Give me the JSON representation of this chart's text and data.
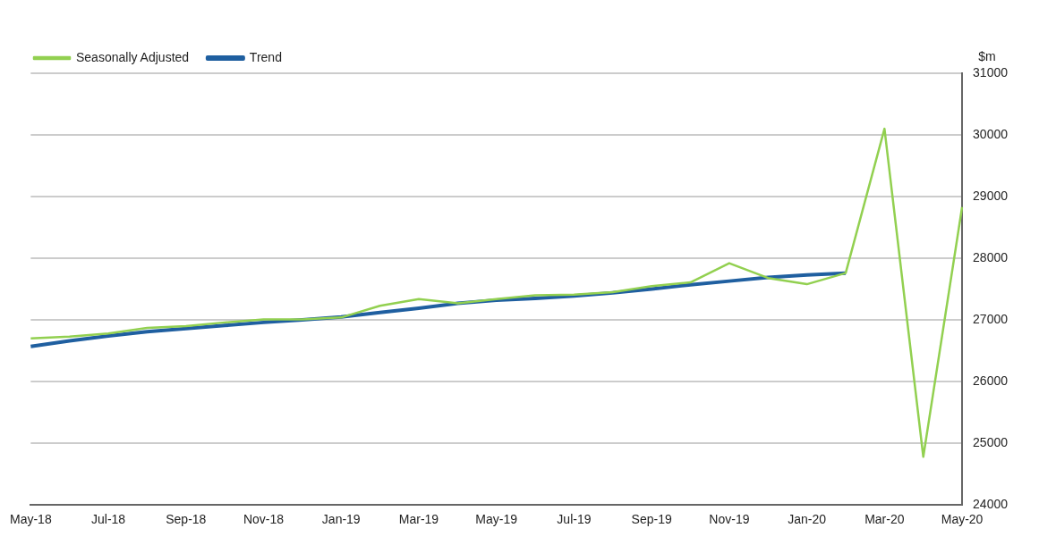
{
  "chart_data": {
    "type": "line",
    "ylabel": "$m",
    "categories": [
      "May-18",
      null,
      "Jul-18",
      null,
      "Sep-18",
      null,
      "Nov-18",
      null,
      "Jan-19",
      null,
      "Mar-19",
      null,
      "May-19",
      null,
      "Jul-19",
      null,
      "Sep-19",
      null,
      "Nov-19",
      null,
      "Jan-20",
      null,
      "Mar-20",
      null,
      "May-20"
    ],
    "series": [
      {
        "name": "Seasonally Adjusted",
        "color": "#92d050",
        "values": [
          26700,
          26730,
          26780,
          26870,
          26900,
          26960,
          27010,
          27010,
          27040,
          27230,
          27340,
          27270,
          27340,
          27400,
          27410,
          27450,
          27550,
          27610,
          27920,
          27680,
          27580,
          27760,
          30100,
          24780,
          28830
        ]
      },
      {
        "name": "Trend",
        "color": "#1f5fa0",
        "values": [
          26570,
          26660,
          26740,
          26810,
          26860,
          26910,
          26960,
          27000,
          27050,
          27120,
          27190,
          27270,
          27320,
          27350,
          27390,
          27440,
          27500,
          27570,
          27630,
          27690,
          27730,
          27760,
          null,
          null,
          null
        ]
      }
    ],
    "ylim": [
      24000,
      31000
    ],
    "yticks": [
      24000,
      25000,
      26000,
      27000,
      28000,
      29000,
      30000,
      31000
    ],
    "grid": "y",
    "legend": "top left",
    "marker": "none"
  }
}
